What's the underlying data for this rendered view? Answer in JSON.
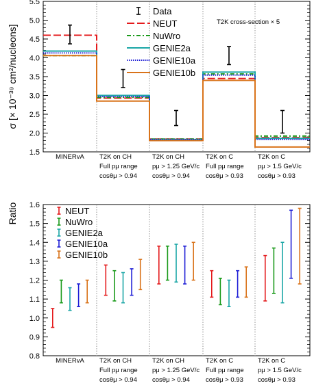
{
  "chart_data": [
    {
      "type": "line",
      "ylabel": "σ [× 10⁻³⁹ cm²/nucleons]",
      "annotation": "T2K cross-section × 5",
      "ylim": [
        1.5,
        5.5
      ],
      "yticks": [
        "1.5",
        "2.0",
        "2.5",
        "3.0",
        "3.5",
        "4.0",
        "4.5",
        "5.0",
        "5.5"
      ],
      "bins": [
        {
          "lines": [
            "MINERvA"
          ]
        },
        {
          "lines": [
            "T2K on CH",
            "Full pμ range",
            "cosθμ > 0.94"
          ]
        },
        {
          "lines": [
            "T2K on CH",
            "pμ > 1.25 GeV/c",
            "cosθμ > 0.94"
          ]
        },
        {
          "lines": [
            "T2K on C",
            "Full pμ range",
            "cosθμ > 0.93"
          ]
        },
        {
          "lines": [
            "T2K on C",
            "pμ > 1.5 GeV/c",
            "cosθμ > 0.93"
          ]
        }
      ],
      "data": {
        "name": "Data",
        "values": [
          4.62,
          3.45,
          2.4,
          4.06,
          2.3
        ],
        "errors": [
          0.25,
          0.24,
          0.2,
          0.24,
          0.3
        ]
      },
      "series": [
        {
          "name": "NEUT",
          "color": "#e41a1c",
          "dash": "long-dash",
          "values": [
            4.6,
            2.93,
            1.84,
            3.45,
            1.88
          ]
        },
        {
          "name": "NuWro",
          "color": "#1a9a1a",
          "dash": "dash-dot",
          "values": [
            4.06,
            2.95,
            1.84,
            3.57,
            1.92
          ]
        },
        {
          "name": "GENIE2a",
          "color": "#1aa6a6",
          "dash": "solid",
          "values": [
            4.18,
            3.0,
            1.83,
            3.62,
            1.86
          ]
        },
        {
          "name": "GENIE10a",
          "color": "#1f1fd6",
          "dash": "dotted",
          "values": [
            4.13,
            2.97,
            1.83,
            3.54,
            1.83
          ]
        },
        {
          "name": "GENIE10b",
          "color": "#d9731a",
          "dash": "solid",
          "values": [
            4.06,
            2.85,
            1.8,
            3.4,
            1.63
          ]
        }
      ]
    },
    {
      "type": "scatter",
      "ylabel": "Ratio",
      "ylim": [
        0.8,
        1.6
      ],
      "yticks": [
        "0.8",
        "0.9",
        "1.0",
        "1.1",
        "1.2",
        "1.3",
        "1.4",
        "1.5",
        "1.6"
      ],
      "bins": [
        {
          "lines": [
            "MINERvA"
          ]
        },
        {
          "lines": [
            "T2K on CH",
            "Full pμ range",
            "cosθμ > 0.94"
          ]
        },
        {
          "lines": [
            "T2K on CH",
            "pμ > 1.25 GeV/c",
            "cosθμ > 0.94"
          ]
        },
        {
          "lines": [
            "T2K on C",
            "Full pμ range",
            "cosθμ > 0.93"
          ]
        },
        {
          "lines": [
            "T2K on C",
            "pμ > 1.5 GeV/c",
            "cosθμ > 0.93"
          ]
        }
      ],
      "series": [
        {
          "name": "NEUT",
          "color": "#e41a1c",
          "values": [
            1.0,
            1.2,
            1.28,
            1.18,
            1.21
          ],
          "errors": [
            0.05,
            0.08,
            0.1,
            0.07,
            0.12
          ]
        },
        {
          "name": "NuWro",
          "color": "#1a9a1a",
          "values": [
            1.14,
            1.17,
            1.29,
            1.14,
            1.25
          ],
          "errors": [
            0.06,
            0.08,
            0.09,
            0.07,
            0.12
          ]
        },
        {
          "name": "GENIE2a",
          "color": "#1aa6a6",
          "values": [
            1.1,
            1.16,
            1.29,
            1.13,
            1.24
          ],
          "errors": [
            0.06,
            0.08,
            0.1,
            0.07,
            0.16
          ]
        },
        {
          "name": "GENIE10a",
          "color": "#1f1fd6",
          "values": [
            1.12,
            1.19,
            1.28,
            1.18,
            1.39
          ],
          "errors": [
            0.06,
            0.07,
            0.1,
            0.07,
            0.18
          ]
        },
        {
          "name": "GENIE10b",
          "color": "#d9731a",
          "values": [
            1.14,
            1.23,
            1.3,
            1.19,
            1.38
          ],
          "errors": [
            0.06,
            0.08,
            0.1,
            0.08,
            0.2
          ]
        }
      ]
    }
  ]
}
